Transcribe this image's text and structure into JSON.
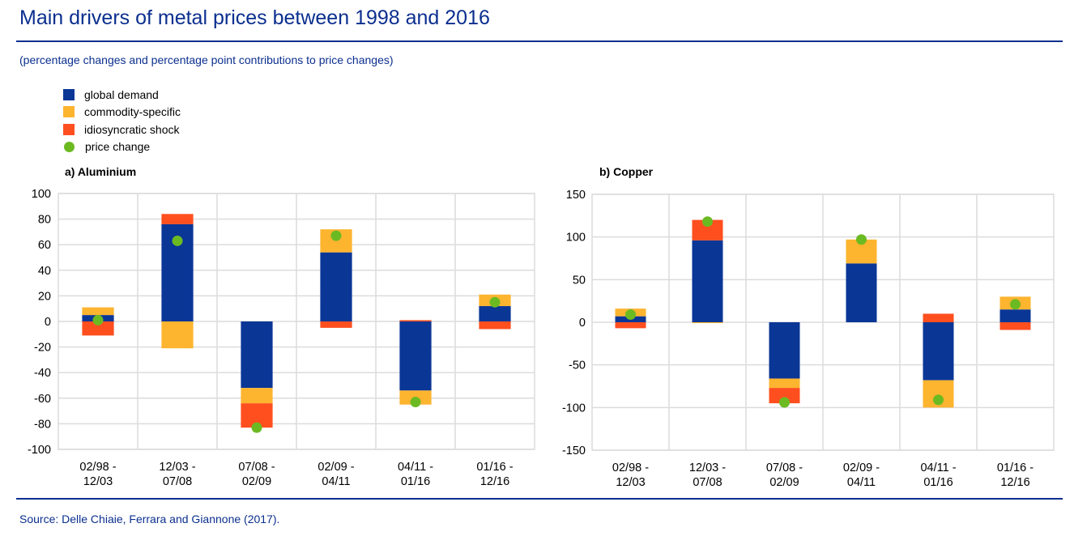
{
  "header": {
    "title": "Main drivers of metal prices between 1998 and 2016",
    "subtitle": "(percentage changes and percentage point contributions to price changes)"
  },
  "legend": [
    {
      "label": "global demand",
      "color": "#0a3696",
      "shape": "square"
    },
    {
      "label": "commodity-specific",
      "color": "#fdb42f",
      "shape": "square"
    },
    {
      "label": "idiosyncratic shock",
      "color": "#ff4f1f",
      "shape": "square"
    },
    {
      "label": "price change",
      "color": "#6cba22",
      "shape": "circle"
    }
  ],
  "footer": {
    "source": "Source: Delle Chiaie, Ferrara and Giannone (2017)."
  },
  "chart_data": [
    {
      "type": "bar",
      "stacked": true,
      "title": "a) Aluminium",
      "xlabel": "",
      "ylabel": "",
      "ylim": [
        -100,
        100
      ],
      "yticks": [
        100,
        80,
        60,
        40,
        20,
        0,
        -20,
        -40,
        -60,
        -80,
        -100
      ],
      "grid": true,
      "categories": [
        [
          "02/98 -",
          "12/03"
        ],
        [
          "12/03 -",
          "07/08"
        ],
        [
          "07/08 -",
          "02/09"
        ],
        [
          "02/09 -",
          "04/11"
        ],
        [
          "04/11 -",
          "01/16"
        ],
        [
          "01/16 -",
          "12/16"
        ]
      ],
      "series": [
        {
          "name": "global demand",
          "values": [
            5,
            76,
            -52,
            54,
            -54,
            12
          ]
        },
        {
          "name": "commodity-specific",
          "values": [
            6,
            -21,
            -12,
            18,
            -11,
            9
          ]
        },
        {
          "name": "idiosyncratic shock",
          "values": [
            -11,
            8,
            -19,
            -5,
            1,
            -6
          ]
        }
      ],
      "points": {
        "name": "price change",
        "values": [
          1,
          63,
          -83,
          67,
          -63,
          15
        ]
      }
    },
    {
      "type": "bar",
      "stacked": true,
      "title": "b) Copper",
      "xlabel": "",
      "ylabel": "",
      "ylim": [
        -150,
        150
      ],
      "yticks": [
        150,
        100,
        50,
        0,
        -50,
        -100,
        -150
      ],
      "grid": true,
      "categories": [
        [
          "02/98 -",
          "12/03"
        ],
        [
          "12/03 -",
          "07/08"
        ],
        [
          "07/08 -",
          "02/09"
        ],
        [
          "02/09 -",
          "04/11"
        ],
        [
          "04/11 -",
          "01/16"
        ],
        [
          "01/16 -",
          "12/16"
        ]
      ],
      "series": [
        {
          "name": "global demand",
          "values": [
            7,
            96,
            -66,
            69,
            -68,
            15
          ]
        },
        {
          "name": "commodity-specific",
          "values": [
            9,
            -1,
            -11,
            28,
            -32,
            15
          ]
        },
        {
          "name": "idiosyncratic shock",
          "values": [
            -7,
            24,
            -18,
            0,
            10,
            -9
          ]
        }
      ],
      "points": {
        "name": "price change",
        "values": [
          9,
          118,
          -94,
          97,
          -91,
          21
        ]
      }
    }
  ]
}
